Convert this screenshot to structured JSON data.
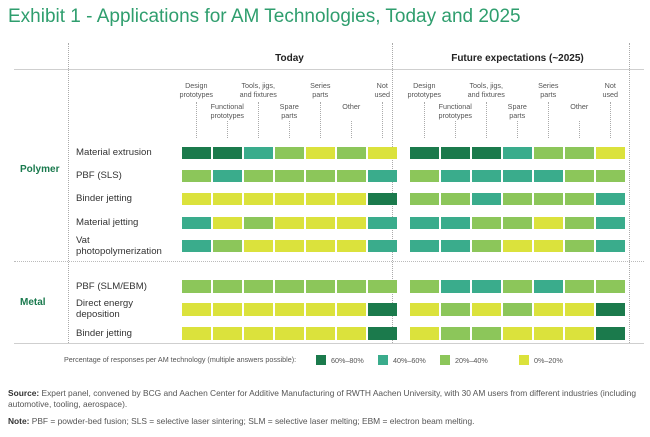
{
  "title": "Exhibit 1 - Applications for AM Technologies, Today and 2025",
  "groups": [
    {
      "name": "Today"
    },
    {
      "name": "Future expectations (~2025)"
    }
  ],
  "columns": [
    {
      "label1": "Design",
      "label2": "prototypes",
      "level": 0
    },
    {
      "label1": "Functional",
      "label2": "prototypes",
      "level": 1
    },
    {
      "label1": "Tools, jigs,",
      "label2": "and fixtures",
      "level": 0
    },
    {
      "label1": "Spare",
      "label2": "parts",
      "level": 1
    },
    {
      "label1": "Series",
      "label2": "parts",
      "level": 0
    },
    {
      "label1": "Other",
      "label2": "",
      "level": 1
    },
    {
      "label1": "Not",
      "label2": "used",
      "level": 0
    }
  ],
  "categories": [
    {
      "name": "Polymer"
    },
    {
      "name": "Metal"
    }
  ],
  "rows": [
    {
      "line1": "Material extrusion",
      "line2": "",
      "cat": 0
    },
    {
      "line1": "PBF (SLS)",
      "line2": "",
      "cat": 0
    },
    {
      "line1": "Binder jetting",
      "line2": "",
      "cat": 0
    },
    {
      "line1": "Material jetting",
      "line2": "",
      "cat": 0
    },
    {
      "line1": "Vat",
      "line2": "photopolymerization",
      "cat": 0
    },
    {
      "line1": "PBF (SLM/EBM)",
      "line2": "",
      "cat": 1
    },
    {
      "line1": "Direct energy",
      "line2": "deposition",
      "cat": 1
    },
    {
      "line1": "Binder jetting",
      "line2": "",
      "cat": 1
    }
  ],
  "colors": [
    "#1b7a4c",
    "#3aac8c",
    "#8cc65a",
    "#dbe23c"
  ],
  "legend": {
    "title": "Percentage of responses per AM technology (multiple answers possible):",
    "items": [
      {
        "label": "60%–80%",
        "level": 0
      },
      {
        "label": "40%–60%",
        "level": 1
      },
      {
        "label": "20%–40%",
        "level": 2
      },
      {
        "label": "0%–20%",
        "level": 3
      }
    ]
  },
  "chart_data": {
    "type": "heatmap",
    "title": "Exhibit 1 - Applications for AM Technologies, Today and 2025",
    "groups": [
      "Today",
      "Future expectations (~2025)"
    ],
    "columns": [
      "Design prototypes",
      "Functional prototypes",
      "Tools, jigs, and fixtures",
      "Spare parts",
      "Series parts",
      "Other",
      "Not used"
    ],
    "rows": [
      "Material extrusion",
      "PBF (SLS)",
      "Binder jetting",
      "Material jetting",
      "Vat photopolymerization",
      "PBF (SLM/EBM)",
      "Direct energy deposition",
      "Binder jetting"
    ],
    "row_categories": [
      "Polymer",
      "Polymer",
      "Polymer",
      "Polymer",
      "Polymer",
      "Metal",
      "Metal",
      "Metal"
    ],
    "scale": [
      "60%–80%",
      "40%–60%",
      "20%–40%",
      "0%–20%"
    ],
    "today": [
      [
        "60%–80%",
        "60%–80%",
        "40%–60%",
        "20%–40%",
        "0%–20%",
        "20%–40%",
        "0%–20%"
      ],
      [
        "20%–40%",
        "40%–60%",
        "20%–40%",
        "20%–40%",
        "20%–40%",
        "20%–40%",
        "40%–60%"
      ],
      [
        "0%–20%",
        "0%–20%",
        "0%–20%",
        "0%–20%",
        "0%–20%",
        "0%–20%",
        "60%–80%"
      ],
      [
        "40%–60%",
        "0%–20%",
        "20%–40%",
        "0%–20%",
        "0%–20%",
        "0%–20%",
        "40%–60%"
      ],
      [
        "40%–60%",
        "20%–40%",
        "0%–20%",
        "0%–20%",
        "0%–20%",
        "0%–20%",
        "40%–60%"
      ],
      [
        "20%–40%",
        "20%–40%",
        "20%–40%",
        "20%–40%",
        "20%–40%",
        "20%–40%",
        "20%–40%"
      ],
      [
        "0%–20%",
        "0%–20%",
        "0%–20%",
        "0%–20%",
        "0%–20%",
        "0%–20%",
        "60%–80%"
      ],
      [
        "0%–20%",
        "0%–20%",
        "0%–20%",
        "0%–20%",
        "0%–20%",
        "0%–20%",
        "60%–80%"
      ]
    ],
    "future": [
      [
        "60%–80%",
        "60%–80%",
        "60%–80%",
        "40%–60%",
        "20%–40%",
        "20%–40%",
        "0%–20%"
      ],
      [
        "20%–40%",
        "40%–60%",
        "40%–60%",
        "40%–60%",
        "40%–60%",
        "20%–40%",
        "20%–40%"
      ],
      [
        "20%–40%",
        "20%–40%",
        "40%–60%",
        "20%–40%",
        "20%–40%",
        "20%–40%",
        "40%–60%"
      ],
      [
        "40%–60%",
        "40%–60%",
        "20%–40%",
        "20%–40%",
        "0%–20%",
        "20%–40%",
        "40%–60%"
      ],
      [
        "40%–60%",
        "40%–60%",
        "20%–40%",
        "0%–20%",
        "0%–20%",
        "20%–40%",
        "40%–60%"
      ],
      [
        "20%–40%",
        "40%–60%",
        "40%–60%",
        "20%–40%",
        "40%–60%",
        "20%–40%",
        "20%–40%"
      ],
      [
        "0%–20%",
        "20%–40%",
        "0%–20%",
        "20%–40%",
        "0%–20%",
        "0%–20%",
        "60%–80%"
      ],
      [
        "0%–20%",
        "20%–40%",
        "20%–40%",
        "0%–20%",
        "0%–20%",
        "0%–20%",
        "60%–80%"
      ]
    ]
  },
  "footer": {
    "source_label": "Source:",
    "source_text": " Expert panel, convened by BCG and Aachen Center for Additive Manufacturing of RWTH Aachen University, with 30 AM users from different industries (including automotive, tooling, aerospace).",
    "note_label": "Note:",
    "note_text": " PBF = powder-bed fusion; SLS = selective laser sintering; SLM = selective laser melting; EBM = electron beam melting."
  }
}
